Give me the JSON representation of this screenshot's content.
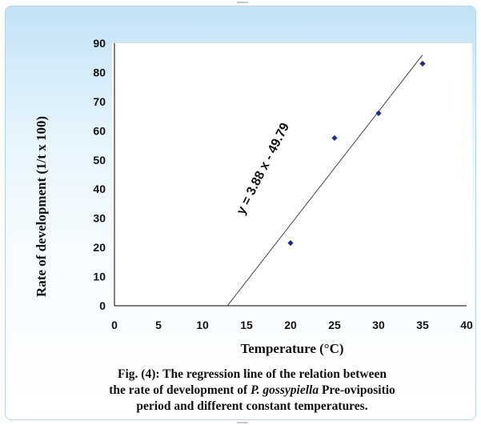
{
  "chart_data": {
    "type": "scatter",
    "points": [
      {
        "x": 20,
        "y": 21.5
      },
      {
        "x": 25,
        "y": 57.5
      },
      {
        "x": 30,
        "y": 66
      },
      {
        "x": 35,
        "y": 83
      }
    ],
    "regression": {
      "slope": 3.88,
      "intercept": -49.79,
      "x_from": 12.83,
      "x_to": 35
    },
    "equation_label": "y = 3.88 x - 49.79",
    "xlabel": "Temperature (°C)",
    "ylabel": "Rate of development (1/t x 100)",
    "xlim": [
      0,
      40
    ],
    "ylim": [
      0,
      90
    ],
    "x_ticks": [
      0,
      5,
      10,
      15,
      20,
      25,
      30,
      35,
      40
    ],
    "y_ticks": [
      0,
      10,
      20,
      30,
      40,
      50,
      60,
      70,
      80,
      90
    ],
    "grid": false,
    "marker_color": "#1f2a8a",
    "line_color": "#444444"
  },
  "caption": {
    "line1": "Fig. (4): The regression  line of the relation between",
    "line2_before": "the rate of development  of ",
    "line2_italic": "P. gossypiella",
    "line2_after": " Pre-ovipositio",
    "line3": "period and different constant temperatures."
  }
}
